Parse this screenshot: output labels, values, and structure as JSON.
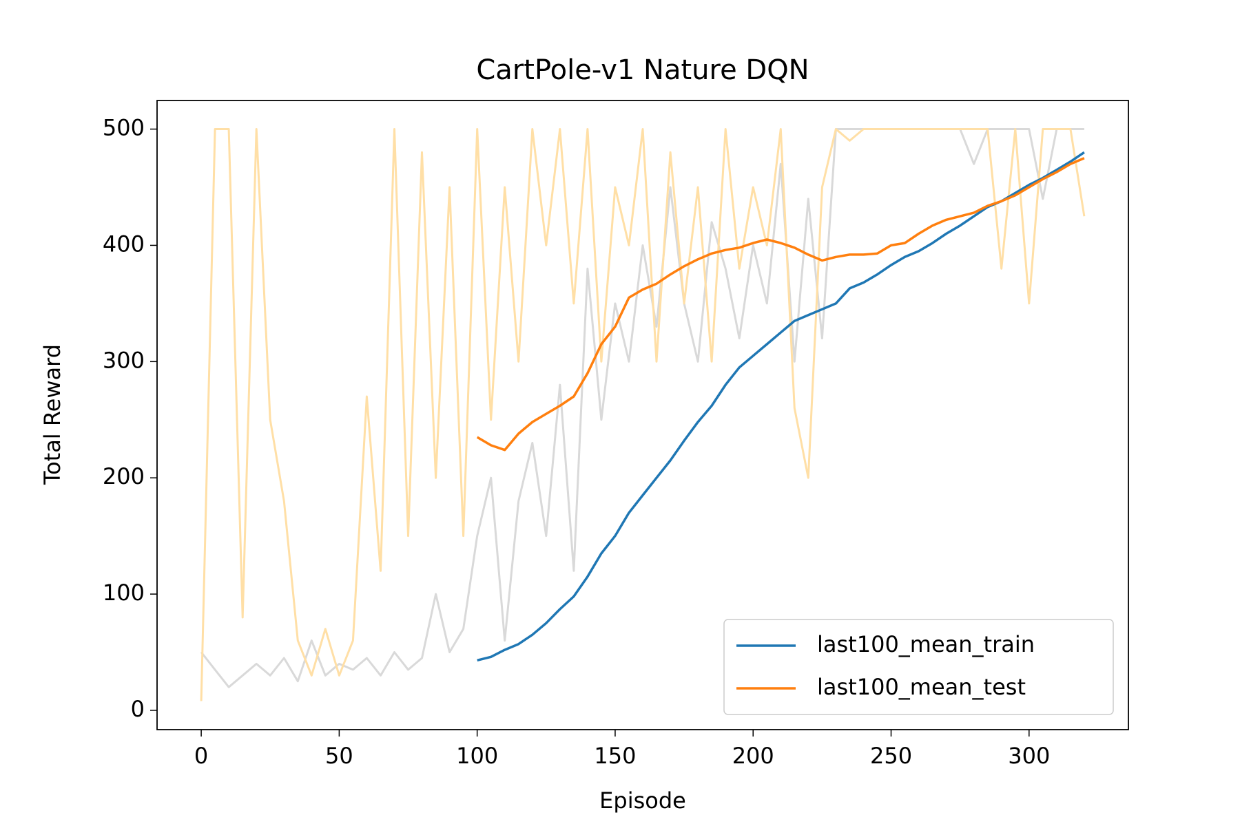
{
  "chart_data": {
    "type": "line",
    "title": "CartPole-v1 Nature DQN",
    "x_label": "Episode",
    "y_label": "Total Reward",
    "x": [
      0,
      5,
      10,
      15,
      20,
      25,
      30,
      35,
      40,
      45,
      50,
      55,
      60,
      65,
      70,
      75,
      80,
      85,
      90,
      95,
      100,
      105,
      110,
      115,
      120,
      125,
      130,
      135,
      140,
      145,
      150,
      155,
      160,
      165,
      170,
      175,
      180,
      185,
      190,
      195,
      200,
      205,
      210,
      215,
      220,
      225,
      230,
      235,
      240,
      245,
      250,
      255,
      260,
      265,
      270,
      275,
      280,
      285,
      290,
      295,
      300,
      305,
      310,
      315,
      320
    ],
    "series": [
      {
        "color": "#d9d9d9",
        "values": [
          50,
          35,
          20,
          30,
          40,
          30,
          45,
          25,
          60,
          30,
          40,
          35,
          45,
          30,
          50,
          35,
          45,
          100,
          50,
          70,
          150,
          200,
          60,
          180,
          230,
          150,
          280,
          120,
          380,
          250,
          350,
          300,
          400,
          330,
          450,
          350,
          300,
          420,
          380,
          320,
          400,
          350,
          470,
          300,
          440,
          320,
          500,
          500,
          500,
          500,
          500,
          500,
          500,
          500,
          500,
          500,
          470,
          500,
          500,
          500,
          500,
          440,
          500,
          500,
          500
        ]
      },
      {
        "color": "#ffdfa6",
        "values": [
          8,
          500,
          500,
          80,
          500,
          250,
          180,
          60,
          30,
          70,
          30,
          60,
          270,
          120,
          500,
          150,
          480,
          200,
          450,
          150,
          500,
          250,
          450,
          300,
          500,
          400,
          500,
          350,
          500,
          300,
          450,
          400,
          500,
          300,
          480,
          350,
          450,
          300,
          500,
          380,
          450,
          400,
          500,
          260,
          200,
          450,
          500,
          490,
          500,
          500,
          500,
          500,
          500,
          500,
          500,
          500,
          500,
          500,
          380,
          500,
          350,
          500,
          500,
          500,
          425
        ]
      },
      {
        "name": "last100_mean_train",
        "color": "#1f77b4",
        "values": [
          null,
          null,
          null,
          null,
          null,
          null,
          null,
          null,
          null,
          null,
          null,
          null,
          null,
          null,
          null,
          null,
          null,
          null,
          null,
          null,
          43,
          46,
          52,
          57,
          65,
          75,
          87,
          98,
          115,
          135,
          150,
          170,
          185,
          200,
          215,
          232,
          248,
          262,
          280,
          295,
          305,
          315,
          325,
          335,
          340,
          345,
          350,
          363,
          368,
          375,
          383,
          390,
          395,
          402,
          410,
          417,
          425,
          433,
          438,
          445,
          452,
          458,
          465,
          472,
          480
        ]
      },
      {
        "name": "last100_mean_test",
        "color": "#ff7f0e",
        "values": [
          null,
          null,
          null,
          null,
          null,
          null,
          null,
          null,
          null,
          null,
          null,
          null,
          null,
          null,
          null,
          null,
          null,
          null,
          null,
          null,
          235,
          228,
          224,
          238,
          248,
          255,
          262,
          270,
          290,
          315,
          330,
          355,
          362,
          367,
          375,
          382,
          388,
          393,
          396,
          398,
          402,
          405,
          402,
          398,
          392,
          387,
          390,
          392,
          392,
          393,
          400,
          402,
          410,
          417,
          422,
          425,
          428,
          434,
          438,
          443,
          450,
          457,
          463,
          470,
          475
        ]
      }
    ],
    "xlim": [
      -16,
      336
    ],
    "ylim": [
      -16.6,
      524.6
    ],
    "xticks": [
      0,
      50,
      100,
      150,
      200,
      250,
      300
    ],
    "yticks": [
      0,
      100,
      200,
      300,
      400,
      500
    ],
    "legend": "lower right"
  }
}
